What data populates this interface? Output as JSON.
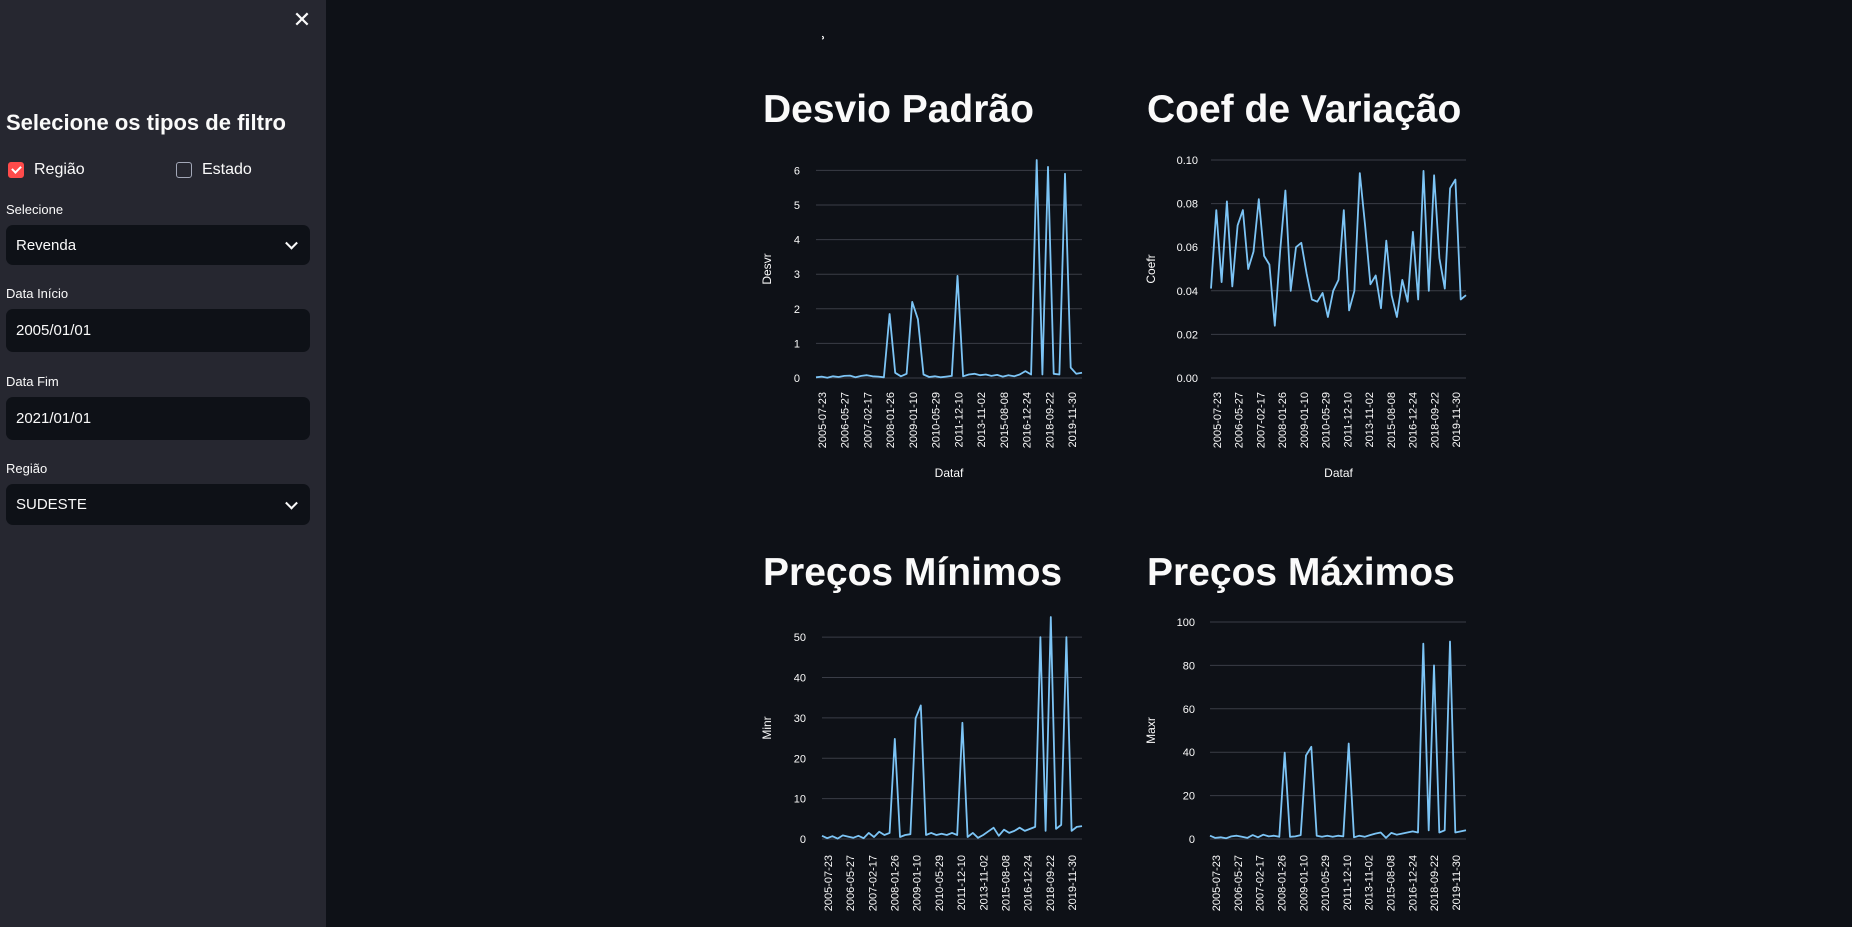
{
  "sidebar": {
    "close_icon": "close-icon",
    "title": "Selecione os tipos de filtro",
    "checkboxes": [
      {
        "label": "Região",
        "checked": true
      },
      {
        "label": "Estado",
        "checked": false
      }
    ],
    "selecione": {
      "label": "Selecione",
      "value": "Revenda"
    },
    "data_inicio": {
      "label": "Data Início",
      "value": "2005/01/01"
    },
    "data_fim": {
      "label": "Data Fim",
      "value": "2021/01/01"
    },
    "regiao": {
      "label": "Região",
      "value": "SUDESTE"
    }
  },
  "main": {
    "mark": "ʾ"
  },
  "colors": {
    "line": "#7cc4f5",
    "accent": "#ff4b4b",
    "sidebar_bg": "#262730",
    "main_bg": "#0e1117",
    "grid": "#3a3d47"
  },
  "chart_data": [
    {
      "type": "line",
      "title": "Desvio Padrão",
      "xlabel": "Dataf",
      "ylabel": "Desvr",
      "ylim": [
        0,
        6.3
      ],
      "yticks": [
        0,
        1,
        2,
        3,
        4,
        5,
        6
      ],
      "xticks": [
        "2005-07-23",
        "2006-05-27",
        "2007-02-17",
        "2008-01-26",
        "2009-01-10",
        "2010-05-29",
        "2011-12-10",
        "2013-11-02",
        "2015-08-08",
        "2016-12-24",
        "2018-09-22",
        "2019-11-30"
      ],
      "values": [
        0.02,
        0.04,
        0.01,
        0.05,
        0.03,
        0.06,
        0.07,
        0.02,
        0.06,
        0.08,
        0.05,
        0.04,
        0.02,
        1.85,
        0.15,
        0.05,
        0.12,
        2.2,
        1.7,
        0.1,
        0.03,
        0.05,
        0.02,
        0.04,
        0.06,
        2.95,
        0.05,
        0.1,
        0.12,
        0.08,
        0.1,
        0.06,
        0.09,
        0.04,
        0.08,
        0.05,
        0.1,
        0.2,
        0.1,
        6.3,
        0.1,
        6.1,
        0.12,
        0.1,
        5.9,
        0.3,
        0.12,
        0.15
      ]
    },
    {
      "type": "line",
      "title": "Coef de Variação",
      "xlabel": "Dataf",
      "ylabel": "Coefr",
      "ylim": [
        0,
        0.1
      ],
      "yticks": [
        0.0,
        0.02,
        0.04,
        0.06,
        0.08,
        0.1
      ],
      "ytick_labels": [
        "0.00",
        "0.02",
        "0.04",
        "0.06",
        "0.08",
        "0.10"
      ],
      "xticks": [
        "2005-07-23",
        "2006-05-27",
        "2007-02-17",
        "2008-01-26",
        "2009-01-10",
        "2010-05-29",
        "2011-12-10",
        "2013-11-02",
        "2015-08-08",
        "2016-12-24",
        "2018-09-22",
        "2019-11-30"
      ],
      "values": [
        0.041,
        0.077,
        0.044,
        0.081,
        0.042,
        0.07,
        0.077,
        0.05,
        0.058,
        0.082,
        0.056,
        0.052,
        0.024,
        0.058,
        0.086,
        0.04,
        0.06,
        0.062,
        0.048,
        0.036,
        0.035,
        0.039,
        0.028,
        0.04,
        0.045,
        0.077,
        0.031,
        0.04,
        0.094,
        0.07,
        0.043,
        0.047,
        0.032,
        0.063,
        0.038,
        0.028,
        0.045,
        0.035,
        0.067,
        0.036,
        0.095,
        0.04,
        0.093,
        0.055,
        0.041,
        0.087,
        0.091,
        0.036,
        0.038
      ]
    },
    {
      "type": "line",
      "title": "Preços Mínimos",
      "xlabel": "",
      "ylabel": "Minr",
      "ylim": [
        0,
        55
      ],
      "yticks": [
        0,
        10,
        20,
        30,
        40,
        50
      ],
      "xticks": [
        "2005-07-23",
        "2006-05-27",
        "2007-02-17",
        "2008-01-26",
        "2009-01-10",
        "2010-05-29",
        "2011-12-10",
        "2013-11-02",
        "2015-08-08",
        "2016-12-24",
        "2018-09-22",
        "2019-11-30"
      ],
      "values": [
        0.8,
        0.2,
        0.7,
        0.1,
        0.9,
        0.6,
        0.3,
        0.8,
        0.2,
        1.5,
        0.5,
        1.8,
        1.0,
        1.5,
        24.8,
        0.5,
        1.0,
        1.2,
        29.9,
        33.1,
        1.0,
        1.5,
        1.0,
        1.3,
        1.0,
        1.5,
        1.0,
        28.8,
        0.5,
        1.5,
        0.3,
        1.0,
        1.9,
        2.8,
        0.8,
        2.3,
        1.5,
        2.0,
        2.8,
        2.0,
        2.5,
        3.0,
        50.0,
        2.0,
        55.0,
        2.5,
        3.5,
        50.0,
        2.0,
        3.0,
        3.2
      ]
    },
    {
      "type": "line",
      "title": "Preços Máximos",
      "xlabel": "",
      "ylabel": "Maxr",
      "ylim": [
        0,
        100
      ],
      "yticks": [
        0,
        20,
        40,
        60,
        80,
        100
      ],
      "xticks": [
        "2005-07-23",
        "2006-05-27",
        "2007-02-17",
        "2008-01-26",
        "2009-01-10",
        "2010-05-29",
        "2011-12-10",
        "2013-11-02",
        "2015-08-08",
        "2016-12-24",
        "2018-09-22",
        "2019-11-30"
      ],
      "values": [
        1.5,
        0.5,
        0.8,
        0.3,
        1.2,
        1.5,
        1.0,
        0.5,
        1.8,
        0.8,
        2.0,
        1.2,
        1.5,
        1.0,
        39.8,
        1.0,
        1.2,
        1.8,
        38.5,
        42.5,
        1.5,
        1.0,
        1.5,
        1.0,
        1.5,
        1.2,
        44.0,
        0.8,
        1.5,
        1.0,
        1.8,
        2.5,
        3.0,
        0.5,
        2.8,
        2.0,
        2.5,
        3.0,
        3.5,
        3.0,
        90.0,
        4.0,
        80.0,
        3.0,
        4.0,
        91.0,
        3.0,
        3.5,
        4.0
      ]
    }
  ]
}
